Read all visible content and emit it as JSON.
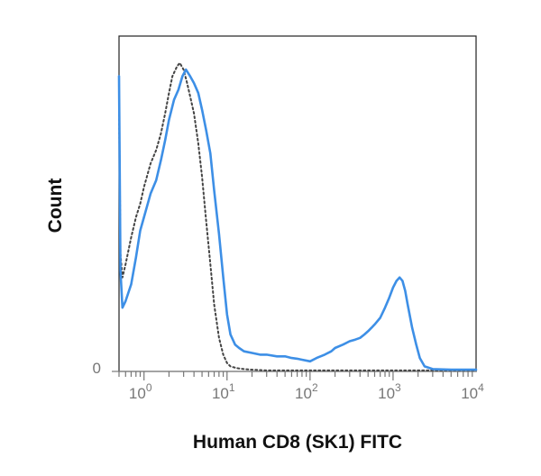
{
  "chart_data": {
    "type": "line",
    "title": "",
    "xlabel": "Human CD8 (SK1) FITC",
    "ylabel": "Count",
    "x_scale": "log",
    "xlim": [
      0.5,
      10000
    ],
    "ylim": [
      0,
      100
    ],
    "grid": false,
    "legend": "none",
    "x_ticks": [
      {
        "base": "10",
        "exp": "0",
        "value": 1
      },
      {
        "base": "10",
        "exp": "1",
        "value": 10
      },
      {
        "base": "10",
        "exp": "2",
        "value": 100
      },
      {
        "base": "10",
        "exp": "3",
        "value": 1000
      },
      {
        "base": "10",
        "exp": "4",
        "value": 10000
      }
    ],
    "y_ticks": [
      {
        "label": "0",
        "value": 0
      }
    ],
    "series": [
      {
        "style": "solid",
        "color": "#3d8fe6",
        "points": [
          [
            0.5,
            88
          ],
          [
            0.52,
            30
          ],
          [
            0.55,
            19
          ],
          [
            0.6,
            21
          ],
          [
            0.7,
            26
          ],
          [
            0.8,
            34
          ],
          [
            0.9,
            42
          ],
          [
            1.0,
            46
          ],
          [
            1.2,
            53
          ],
          [
            1.4,
            57
          ],
          [
            1.6,
            63
          ],
          [
            1.8,
            69
          ],
          [
            2.0,
            75
          ],
          [
            2.3,
            81
          ],
          [
            2.6,
            84
          ],
          [
            2.9,
            88
          ],
          [
            3.2,
            90
          ],
          [
            3.6,
            88
          ],
          [
            4.0,
            86
          ],
          [
            4.5,
            83
          ],
          [
            5.0,
            78
          ],
          [
            5.6,
            72
          ],
          [
            6.3,
            65
          ],
          [
            7.0,
            54
          ],
          [
            8.0,
            41
          ],
          [
            9.0,
            28
          ],
          [
            10.0,
            17
          ],
          [
            11.0,
            11
          ],
          [
            12.5,
            8
          ],
          [
            14,
            7
          ],
          [
            16,
            6
          ],
          [
            20,
            5.5
          ],
          [
            25,
            5
          ],
          [
            30,
            5
          ],
          [
            40,
            4.5
          ],
          [
            50,
            4.5
          ],
          [
            60,
            4
          ],
          [
            70,
            3.8
          ],
          [
            80,
            3.5
          ],
          [
            100,
            3
          ],
          [
            120,
            4
          ],
          [
            150,
            5
          ],
          [
            180,
            6
          ],
          [
            200,
            7
          ],
          [
            250,
            8
          ],
          [
            300,
            9
          ],
          [
            350,
            9.5
          ],
          [
            400,
            10
          ],
          [
            450,
            11
          ],
          [
            500,
            12
          ],
          [
            550,
            13
          ],
          [
            600,
            14
          ],
          [
            700,
            16
          ],
          [
            800,
            19
          ],
          [
            900,
            22
          ],
          [
            1000,
            25
          ],
          [
            1100,
            27
          ],
          [
            1200,
            28
          ],
          [
            1300,
            27
          ],
          [
            1400,
            24
          ],
          [
            1500,
            20
          ],
          [
            1700,
            13
          ],
          [
            1900,
            8
          ],
          [
            2100,
            4
          ],
          [
            2400,
            1.5
          ],
          [
            3000,
            0.7
          ],
          [
            5000,
            0.5
          ],
          [
            10000,
            0.5
          ]
        ]
      },
      {
        "style": "dotted",
        "color": "#444444",
        "points": [
          [
            0.5,
            82
          ],
          [
            0.52,
            35
          ],
          [
            0.55,
            28
          ],
          [
            0.6,
            32
          ],
          [
            0.7,
            40
          ],
          [
            0.8,
            46
          ],
          [
            0.9,
            50
          ],
          [
            1.0,
            55
          ],
          [
            1.2,
            62
          ],
          [
            1.4,
            66
          ],
          [
            1.6,
            71
          ],
          [
            1.8,
            77
          ],
          [
            2.0,
            83
          ],
          [
            2.2,
            88
          ],
          [
            2.5,
            91
          ],
          [
            2.7,
            92
          ],
          [
            3.0,
            90
          ],
          [
            3.3,
            86
          ],
          [
            3.6,
            82
          ],
          [
            4.0,
            77
          ],
          [
            4.5,
            68
          ],
          [
            5.0,
            58
          ],
          [
            5.6,
            45
          ],
          [
            6.3,
            32
          ],
          [
            7.0,
            20
          ],
          [
            8.0,
            10
          ],
          [
            9.0,
            5
          ],
          [
            10.0,
            2.5
          ],
          [
            11,
            1.5
          ],
          [
            13,
            1
          ],
          [
            16,
            0.7
          ],
          [
            20,
            0.5
          ],
          [
            30,
            0.3
          ],
          [
            10000,
            0.3
          ]
        ]
      }
    ]
  }
}
